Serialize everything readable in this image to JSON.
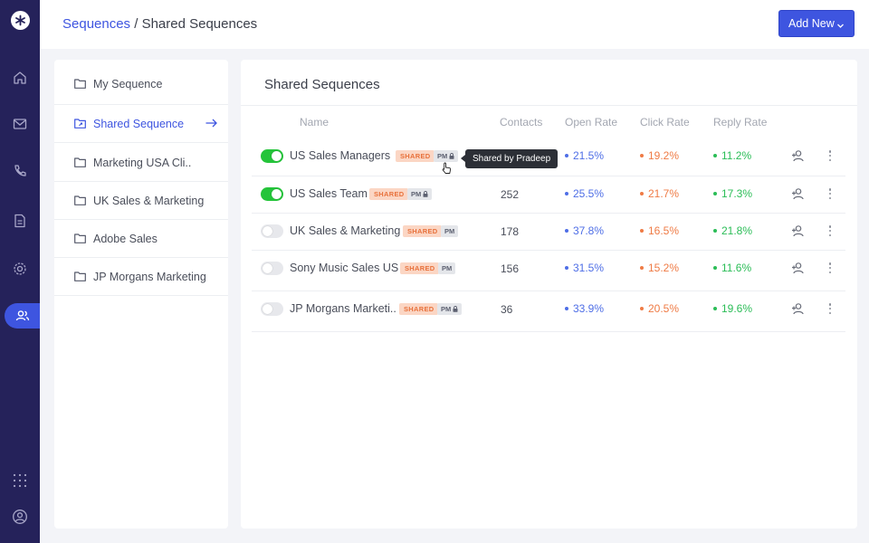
{
  "app": {
    "breadcrumb": {
      "parent": "Sequences",
      "separator": " / ",
      "current": "Shared Sequences"
    },
    "add_new_label": "Add New"
  },
  "rail": {
    "icons": [
      "logo-icon",
      "home-icon",
      "mail-icon",
      "phone-icon",
      "document-icon",
      "settings-icon",
      "contacts-icon",
      "apps-grid-icon",
      "account-icon"
    ],
    "active": "contacts-icon"
  },
  "folders": [
    {
      "label": "My Sequence",
      "active": false
    },
    {
      "label": "Shared Sequence",
      "active": true
    },
    {
      "label": "Marketing USA Cli..",
      "active": false
    },
    {
      "label": "UK Sales & Marketing",
      "active": false
    },
    {
      "label": "Adobe Sales",
      "active": false
    },
    {
      "label": "JP Morgans Marketing",
      "active": false
    }
  ],
  "main": {
    "title": "Shared Sequences",
    "columns": [
      "Name",
      "Contacts",
      "Open Rate",
      "Click Rate",
      "Reply Rate"
    ],
    "rows": [
      {
        "enabled": true,
        "name": "US Sales Managers",
        "shared": "SHARED",
        "owner": "PM",
        "locked": true,
        "contacts": "",
        "open_rate": "21.5%",
        "click_rate": "19.2%",
        "reply_rate": "11.2%"
      },
      {
        "enabled": true,
        "name": "US Sales Team",
        "shared": "SHARED",
        "owner": "PM",
        "locked": true,
        "contacts": "252",
        "open_rate": "25.5%",
        "click_rate": "21.7%",
        "reply_rate": "17.3%"
      },
      {
        "enabled": false,
        "name": "UK Sales & Marketing",
        "shared": "SHARED",
        "owner": "PM",
        "locked": false,
        "contacts": "178",
        "open_rate": "37.8%",
        "click_rate": "16.5%",
        "reply_rate": "21.8%"
      },
      {
        "enabled": false,
        "name": "Sony Music Sales US",
        "shared": "SHARED",
        "owner": "PM",
        "locked": false,
        "contacts": "156",
        "open_rate": "31.5%",
        "click_rate": "15.2%",
        "reply_rate": "11.6%"
      },
      {
        "enabled": false,
        "name": "JP Morgans Marketi..",
        "shared": "SHARED",
        "owner": "PM",
        "locked": true,
        "contacts": "36",
        "open_rate": "33.9%",
        "click_rate": "20.5%",
        "reply_rate": "19.6%"
      }
    ],
    "tooltip": "Shared by Pradeep"
  },
  "colors": {
    "rail": "#25225a",
    "accent": "#3e55e0",
    "toggle_on": "#24c43a",
    "open_rate": "#4e6ee6",
    "click_rate": "#ef7b45",
    "reply_rate": "#2bbd57",
    "shared_badge_bg": "#fbd6c4",
    "shared_badge_text": "#e8713b"
  }
}
